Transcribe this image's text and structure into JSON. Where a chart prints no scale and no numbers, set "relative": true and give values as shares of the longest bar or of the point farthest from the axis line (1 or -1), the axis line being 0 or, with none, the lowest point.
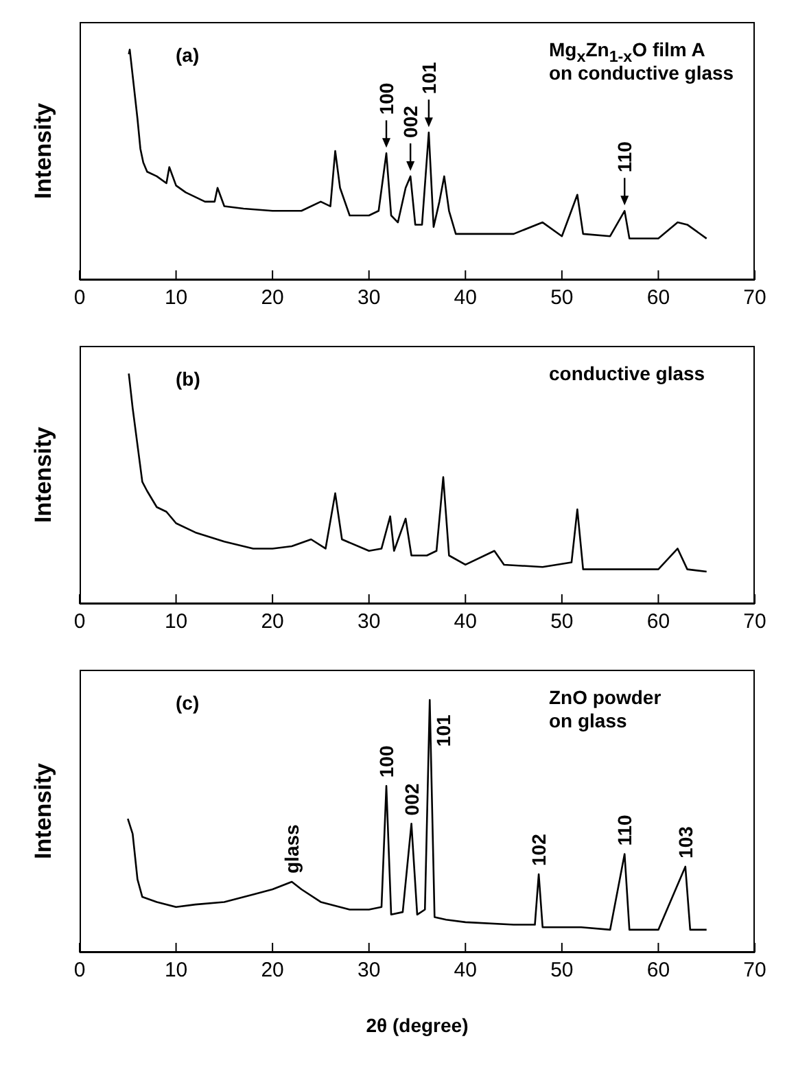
{
  "chart_data": [
    {
      "type": "line",
      "ylabel": "Intensity",
      "relative": true,
      "tick_labels": "x",
      "xlim": [
        0,
        70
      ],
      "xticks": [
        0,
        10,
        20,
        30,
        40,
        50,
        60,
        70
      ],
      "annotations": [
        "(a)",
        "Mg$_{x}$Zn$_{1-x}$O film A",
        "on conductive glass",
        {
          "text": "100",
          "x": 31.8,
          "y": 0.55
        },
        {
          "text": "002",
          "x": 34.3,
          "y": 0.45
        },
        {
          "text": "101",
          "x": 36.2,
          "y": 0.64
        },
        {
          "text": "110",
          "x": 56.5,
          "y": 0.3
        }
      ],
      "series": [
        {
          "color": "#000000",
          "x": [
            5.1,
            5.2,
            5.6,
            6,
            6.3,
            6.6,
            7,
            8,
            9,
            9.3,
            10,
            11,
            12,
            13,
            14,
            14.3,
            15,
            17,
            20,
            23,
            25,
            26,
            26.5,
            27,
            28,
            30,
            31,
            31.8,
            32.3,
            33,
            33.8,
            34.3,
            34.8,
            35.5,
            36.2,
            36.7,
            37.3,
            37.8,
            38.3,
            39,
            42,
            45,
            48,
            50,
            51.6,
            52.2,
            55,
            56.5,
            57,
            60,
            62,
            63,
            65
          ],
          "values": [
            0.98,
            1.0,
            0.85,
            0.7,
            0.57,
            0.51,
            0.47,
            0.45,
            0.42,
            0.49,
            0.41,
            0.38,
            0.36,
            0.34,
            0.34,
            0.4,
            0.32,
            0.31,
            0.3,
            0.3,
            0.34,
            0.32,
            0.56,
            0.4,
            0.28,
            0.28,
            0.3,
            0.55,
            0.28,
            0.25,
            0.4,
            0.45,
            0.24,
            0.24,
            0.64,
            0.23,
            0.34,
            0.45,
            0.3,
            0.2,
            0.2,
            0.2,
            0.25,
            0.19,
            0.37,
            0.2,
            0.19,
            0.3,
            0.18,
            0.18,
            0.25,
            0.24,
            0.18
          ]
        }
      ]
    },
    {
      "type": "line",
      "ylabel": "Intensity",
      "relative": true,
      "tick_labels": "x",
      "xlim": [
        0,
        70
      ],
      "xticks": [
        0,
        10,
        20,
        30,
        40,
        50,
        60,
        70
      ],
      "annotations": [
        "(b)",
        "conductive glass"
      ],
      "series": [
        {
          "color": "#000000",
          "x": [
            5.1,
            5.5,
            6,
            6.5,
            7,
            8,
            9,
            10,
            12,
            15,
            18,
            20,
            22,
            24,
            25.5,
            26.5,
            27.2,
            30,
            31.3,
            32.2,
            32.6,
            33.8,
            34.4,
            36,
            37,
            37.7,
            38.3,
            40,
            43,
            44,
            48,
            51,
            51.6,
            52.2,
            55,
            60,
            62,
            63,
            65
          ],
          "values": [
            1.0,
            0.85,
            0.69,
            0.53,
            0.49,
            0.42,
            0.4,
            0.35,
            0.31,
            0.27,
            0.24,
            0.24,
            0.25,
            0.28,
            0.24,
            0.48,
            0.28,
            0.23,
            0.24,
            0.38,
            0.23,
            0.37,
            0.21,
            0.21,
            0.23,
            0.55,
            0.21,
            0.17,
            0.23,
            0.17,
            0.16,
            0.18,
            0.41,
            0.15,
            0.15,
            0.15,
            0.24,
            0.15,
            0.14
          ]
        }
      ]
    },
    {
      "type": "line",
      "ylabel": "Intensity",
      "xlabel": "2θ (degree)",
      "relative": true,
      "tick_labels": "x",
      "xlim": [
        0,
        70
      ],
      "xticks": [
        0,
        10,
        20,
        30,
        40,
        50,
        60,
        70
      ],
      "annotations": [
        "(c)",
        "ZnO powder",
        "on glass",
        {
          "text": "glass",
          "x": 22,
          "y": 0.28
        },
        {
          "text": "100",
          "x": 31.8,
          "y": 0.66
        },
        {
          "text": "002",
          "x": 34.4,
          "y": 0.51
        },
        {
          "text": "101",
          "x": 36.3,
          "y": 1.0
        },
        {
          "text": "102",
          "x": 47.6,
          "y": 0.31
        },
        {
          "text": "110",
          "x": 56.5,
          "y": 0.39
        },
        {
          "text": "103",
          "x": 62.8,
          "y": 0.34
        }
      ],
      "series": [
        {
          "color": "#000000",
          "x": [
            5,
            5.5,
            6,
            6.5,
            8,
            10,
            12,
            15,
            18,
            20,
            22,
            23,
            25,
            28,
            30,
            31.3,
            31.8,
            32.3,
            33.5,
            34.4,
            35,
            35.8,
            36.3,
            36.8,
            38,
            40,
            45,
            47.2,
            47.6,
            48,
            52,
            55,
            56.5,
            57,
            60,
            62.8,
            63.3,
            65
          ],
          "values": [
            0.53,
            0.47,
            0.29,
            0.22,
            0.2,
            0.18,
            0.19,
            0.2,
            0.23,
            0.25,
            0.28,
            0.25,
            0.2,
            0.17,
            0.17,
            0.18,
            0.66,
            0.15,
            0.16,
            0.51,
            0.15,
            0.17,
            1.0,
            0.14,
            0.13,
            0.12,
            0.11,
            0.11,
            0.31,
            0.1,
            0.1,
            0.09,
            0.39,
            0.09,
            0.09,
            0.34,
            0.09,
            0.09
          ]
        }
      ]
    }
  ]
}
